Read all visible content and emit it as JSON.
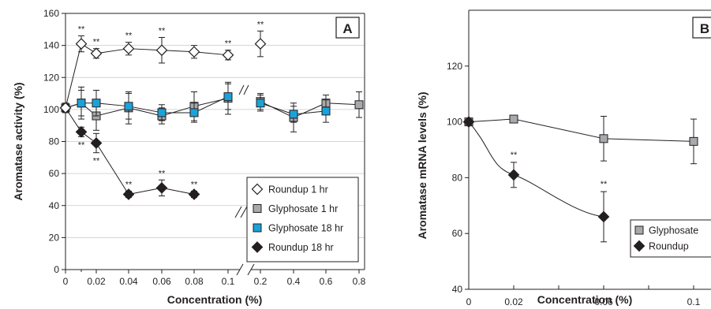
{
  "chart_data": [
    {
      "type": "line",
      "panel_label": "A",
      "xlabel": "Concentration (%)",
      "ylabel": "Aromatase activity (%)",
      "ylim": [
        0,
        160
      ],
      "y_ticks": [
        "0",
        "20",
        "40",
        "60",
        "80",
        "100",
        "120",
        "140",
        "160"
      ],
      "x_ticks": [
        "0",
        "0.02",
        "0.04",
        "0.06",
        "0.08",
        "0.1",
        "0.2",
        "0.4",
        "0.6",
        "0.8"
      ],
      "x_break_between": [
        "0.1",
        "0.2"
      ],
      "grid": "horizontal",
      "legend_position": "bottom-right",
      "significance_marker": "**",
      "series": [
        {
          "name": "Roundup 1 hr",
          "marker": "open-diamond",
          "color": "#ffffff",
          "x": [
            "0",
            "0.01",
            "0.02",
            "0.04",
            "0.06",
            "0.08",
            "0.1",
            "0.2"
          ],
          "y": [
            101,
            141,
            135,
            138,
            137,
            136,
            134,
            141
          ],
          "err": [
            2,
            5,
            3,
            4,
            8,
            4,
            3,
            8
          ],
          "significant": [
            false,
            true,
            true,
            true,
            true,
            false,
            true,
            true
          ],
          "connect": [
            true,
            true,
            true,
            true,
            true,
            true,
            false
          ]
        },
        {
          "name": "Glyphosate 1 hr",
          "marker": "square",
          "color": "#a7a9ac",
          "x": [
            "0",
            "0.01",
            "0.02",
            "0.04",
            "0.06",
            "0.08",
            "0.1",
            "0.2",
            "0.4",
            "0.6",
            "0.8"
          ],
          "y": [
            101,
            104,
            96,
            101,
            96,
            102,
            107,
            105,
            95,
            104,
            103
          ],
          "err": [
            3,
            10,
            9,
            10,
            5,
            9,
            10,
            5,
            9,
            5,
            8
          ],
          "significant": [
            false,
            false,
            false,
            false,
            false,
            false,
            false,
            false,
            false,
            false,
            false
          ],
          "connect": [
            true,
            true,
            true,
            true,
            true,
            true,
            false,
            true,
            true,
            true
          ]
        },
        {
          "name": "Glyphosate 18 hr",
          "marker": "square",
          "color": "#1aa3d9",
          "x": [
            "0",
            "0.01",
            "0.02",
            "0.04",
            "0.06",
            "0.08",
            "0.1",
            "0.2",
            "0.4",
            "0.6"
          ],
          "y": [
            101,
            104,
            104,
            102,
            98,
            98,
            108,
            104,
            97,
            99
          ],
          "err": [
            2,
            8,
            8,
            8,
            5,
            6,
            8,
            5,
            5,
            7
          ],
          "significant": [
            false,
            false,
            false,
            false,
            false,
            false,
            false,
            false,
            false,
            false
          ],
          "connect": [
            true,
            true,
            true,
            true,
            true,
            true,
            false,
            true,
            true
          ]
        },
        {
          "name": "Roundup 18 hr",
          "marker": "diamond",
          "color": "#231f20",
          "x": [
            "0",
            "0.01",
            "0.02",
            "0.04",
            "0.06",
            "0.08"
          ],
          "y": [
            101,
            86,
            79,
            47,
            51,
            47
          ],
          "err": [
            2,
            3,
            6,
            2,
            5,
            2
          ],
          "significant": [
            false,
            true,
            true,
            true,
            true,
            true
          ],
          "connect": [
            true,
            true,
            true,
            true,
            true
          ]
        }
      ]
    },
    {
      "type": "line",
      "panel_label": "B",
      "xlabel": "Concentration (%)",
      "ylabel": "Aromatase mRNA levels (%)",
      "ylim": [
        40,
        140
      ],
      "y_ticks": [
        "40",
        "60",
        "80",
        "100",
        "120"
      ],
      "x_ticks": [
        "0",
        "0.02",
        "0.06",
        "0.1"
      ],
      "legend_position": "bottom-right",
      "significance_marker": "**",
      "series": [
        {
          "name": "Glyphosate",
          "marker": "square",
          "color": "#a7a9ac",
          "x": [
            0,
            0.02,
            0.06,
            0.1
          ],
          "y": [
            100,
            101,
            94,
            93
          ],
          "err": [
            0,
            0,
            8,
            8
          ],
          "significant": [
            false,
            false,
            false,
            false
          ],
          "curve": "straight"
        },
        {
          "name": "Roundup",
          "marker": "diamond",
          "color": "#231f20",
          "x": [
            0,
            0.02,
            0.06
          ],
          "y": [
            100,
            81,
            66
          ],
          "err": [
            0,
            4.5,
            9
          ],
          "significant": [
            false,
            true,
            true
          ],
          "curve": "smooth"
        }
      ]
    }
  ]
}
